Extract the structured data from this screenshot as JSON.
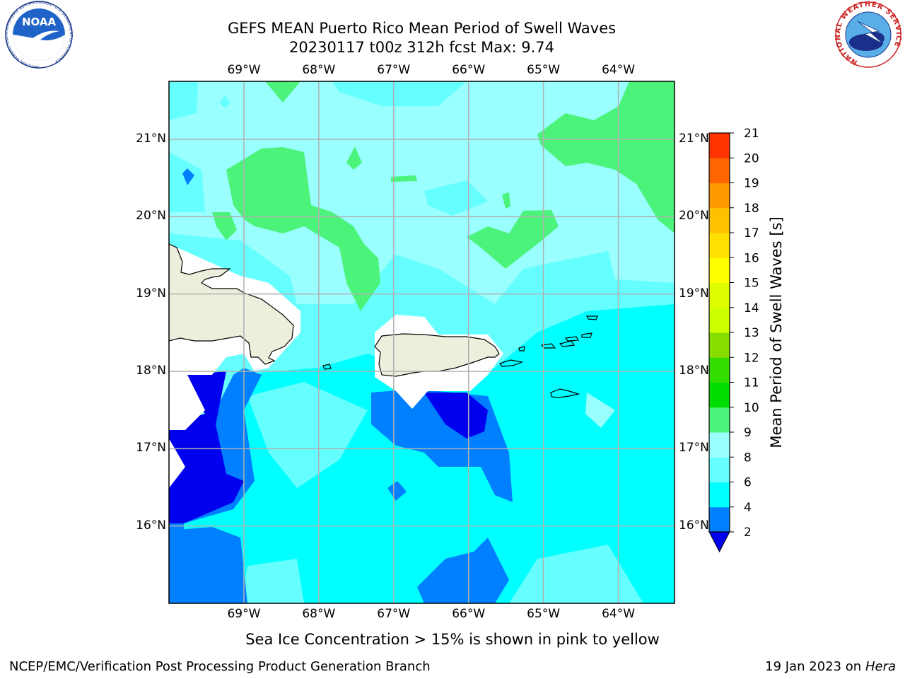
{
  "title": {
    "line1": "GEFS MEAN Puerto Rico Mean Period of Swell Waves",
    "line2": "20230117 t00z 312h fcst   Max: 9.74"
  },
  "logos": {
    "left": {
      "text": "NOAA",
      "icon": "noaa-logo-icon",
      "ring_text": "NATIONAL OCEANIC AND ATMOSPHERIC ADMINISTRATION · U.S. DEPARTMENT OF COMMERCE"
    },
    "right": {
      "icon": "nws-logo-icon",
      "ring_text": "NATIONAL WEATHER SERVICE"
    }
  },
  "map": {
    "lon_ticks": [
      "69°W",
      "68°W",
      "67°W",
      "66°W",
      "65°W",
      "64°W"
    ],
    "lat_ticks": [
      "21°N",
      "20°N",
      "19°N",
      "18°N",
      "17°N",
      "16°N"
    ],
    "lon_values": [
      -69,
      -68,
      -67,
      -66,
      -65,
      -64
    ],
    "lat_values": [
      21,
      20,
      19,
      18,
      17,
      16
    ],
    "extent": {
      "lon": [
        -70.0,
        -63.25
      ],
      "lat": [
        15.0,
        21.75
      ]
    },
    "grid": true,
    "land_color": "#eeeedd"
  },
  "colorbar": {
    "label": "Mean Period of Swell Waves [s]",
    "ticks": [
      "2",
      "4",
      "6",
      "8",
      "9",
      "10",
      "11",
      "12",
      "13",
      "14",
      "15",
      "16",
      "17",
      "18",
      "19",
      "20",
      "21"
    ],
    "colors": [
      "#0000ff",
      "#007fff",
      "#00ffff",
      "#66ffff",
      "#99ffff",
      "#4cf37b",
      "#00dd00",
      "#33dd00",
      "#88dd00",
      "#ccff00",
      "#ddff00",
      "#ffff00",
      "#ffe000",
      "#ffc000",
      "#ff9900",
      "#ff6600",
      "#ff3300",
      "#ff0000"
    ],
    "under_color": "#0000ee"
  },
  "caption": "Sea Ice Concentration > 15% is shown in pink to yellow",
  "footer": {
    "left": "NCEP/EMC/Verification Post Processing Product Generation Branch",
    "right_prefix": "19 Jan 2023 on ",
    "right_host": "Hera"
  }
}
